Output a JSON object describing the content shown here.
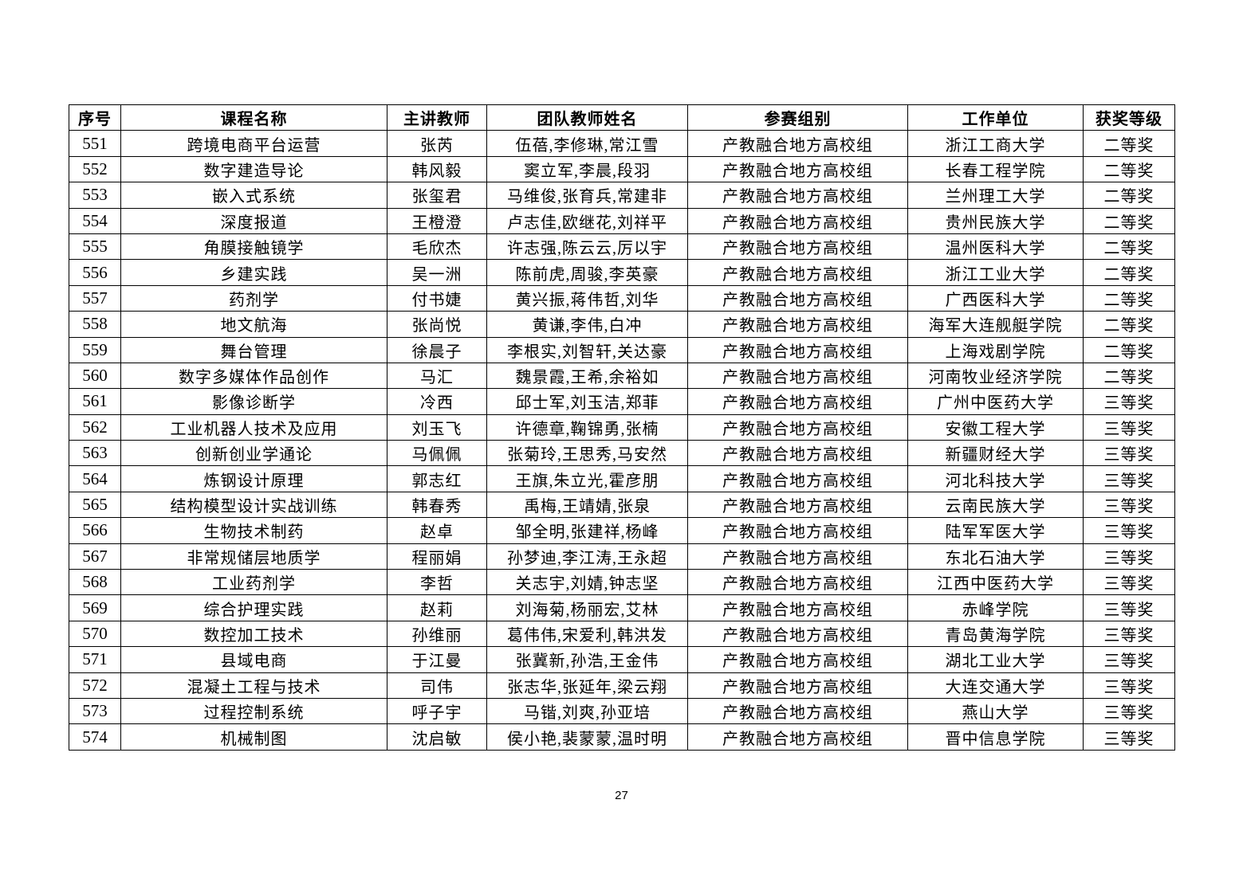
{
  "table": {
    "headers": [
      "序号",
      "课程名称",
      "主讲教师",
      "团队教师姓名",
      "参赛组别",
      "工作单位",
      "获奖等级"
    ],
    "rows": [
      [
        "551",
        "跨境电商平台运营",
        "张芮",
        "伍蓓,李修琳,常江雪",
        "产教融合地方高校组",
        "浙江工商大学",
        "二等奖"
      ],
      [
        "552",
        "数字建造导论",
        "韩风毅",
        "窦立军,李晨,段羽",
        "产教融合地方高校组",
        "长春工程学院",
        "二等奖"
      ],
      [
        "553",
        "嵌入式系统",
        "张玺君",
        "马维俊,张育兵,常建非",
        "产教融合地方高校组",
        "兰州理工大学",
        "二等奖"
      ],
      [
        "554",
        "深度报道",
        "王橙澄",
        "卢志佳,欧继花,刘祥平",
        "产教融合地方高校组",
        "贵州民族大学",
        "二等奖"
      ],
      [
        "555",
        "角膜接触镜学",
        "毛欣杰",
        "许志强,陈云云,厉以宇",
        "产教融合地方高校组",
        "温州医科大学",
        "二等奖"
      ],
      [
        "556",
        "乡建实践",
        "吴一洲",
        "陈前虎,周骏,李英豪",
        "产教融合地方高校组",
        "浙江工业大学",
        "二等奖"
      ],
      [
        "557",
        "药剂学",
        "付书婕",
        "黄兴振,蒋伟哲,刘华",
        "产教融合地方高校组",
        "广西医科大学",
        "二等奖"
      ],
      [
        "558",
        "地文航海",
        "张尚悦",
        "黄谦,李伟,白冲",
        "产教融合地方高校组",
        "海军大连舰艇学院",
        "二等奖"
      ],
      [
        "559",
        "舞台管理",
        "徐晨子",
        "李根实,刘智轩,关达豪",
        "产教融合地方高校组",
        "上海戏剧学院",
        "二等奖"
      ],
      [
        "560",
        "数字多媒体作品创作",
        "马汇",
        "魏景霞,王希,余裕如",
        "产教融合地方高校组",
        "河南牧业经济学院",
        "二等奖"
      ],
      [
        "561",
        "影像诊断学",
        "冷西",
        "邱士军,刘玉洁,郑菲",
        "产教融合地方高校组",
        "广州中医药大学",
        "三等奖"
      ],
      [
        "562",
        "工业机器人技术及应用",
        "刘玉飞",
        "许德章,鞠锦勇,张楠",
        "产教融合地方高校组",
        "安徽工程大学",
        "三等奖"
      ],
      [
        "563",
        "创新创业学通论",
        "马佩佩",
        "张菊玲,王思秀,马安然",
        "产教融合地方高校组",
        "新疆财经大学",
        "三等奖"
      ],
      [
        "564",
        "炼钢设计原理",
        "郭志红",
        "王旗,朱立光,霍彦朋",
        "产教融合地方高校组",
        "河北科技大学",
        "三等奖"
      ],
      [
        "565",
        "结构模型设计实战训练",
        "韩春秀",
        "禹梅,王靖婧,张泉",
        "产教融合地方高校组",
        "云南民族大学",
        "三等奖"
      ],
      [
        "566",
        "生物技术制药",
        "赵卓",
        "邹全明,张建祥,杨峰",
        "产教融合地方高校组",
        "陆军军医大学",
        "三等奖"
      ],
      [
        "567",
        "非常规储层地质学",
        "程丽娟",
        "孙梦迪,李江涛,王永超",
        "产教融合地方高校组",
        "东北石油大学",
        "三等奖"
      ],
      [
        "568",
        "工业药剂学",
        "李哲",
        "关志宇,刘婧,钟志坚",
        "产教融合地方高校组",
        "江西中医药大学",
        "三等奖"
      ],
      [
        "569",
        "综合护理实践",
        "赵莉",
        "刘海菊,杨丽宏,艾林",
        "产教融合地方高校组",
        "赤峰学院",
        "三等奖"
      ],
      [
        "570",
        "数控加工技术",
        "孙维丽",
        "葛伟伟,宋爱利,韩洪发",
        "产教融合地方高校组",
        "青岛黄海学院",
        "三等奖"
      ],
      [
        "571",
        "县域电商",
        "于江曼",
        "张冀新,孙浩,王金伟",
        "产教融合地方高校组",
        "湖北工业大学",
        "三等奖"
      ],
      [
        "572",
        "混凝土工程与技术",
        "司伟",
        "张志华,张延年,梁云翔",
        "产教融合地方高校组",
        "大连交通大学",
        "三等奖"
      ],
      [
        "573",
        "过程控制系统",
        "呼子宇",
        "马锴,刘爽,孙亚培",
        "产教融合地方高校组",
        "燕山大学",
        "三等奖"
      ],
      [
        "574",
        "机械制图",
        "沈启敏",
        "侯小艳,裴蒙蒙,温时明",
        "产教融合地方高校组",
        "晋中信息学院",
        "三等奖"
      ]
    ]
  },
  "page_number": "27"
}
